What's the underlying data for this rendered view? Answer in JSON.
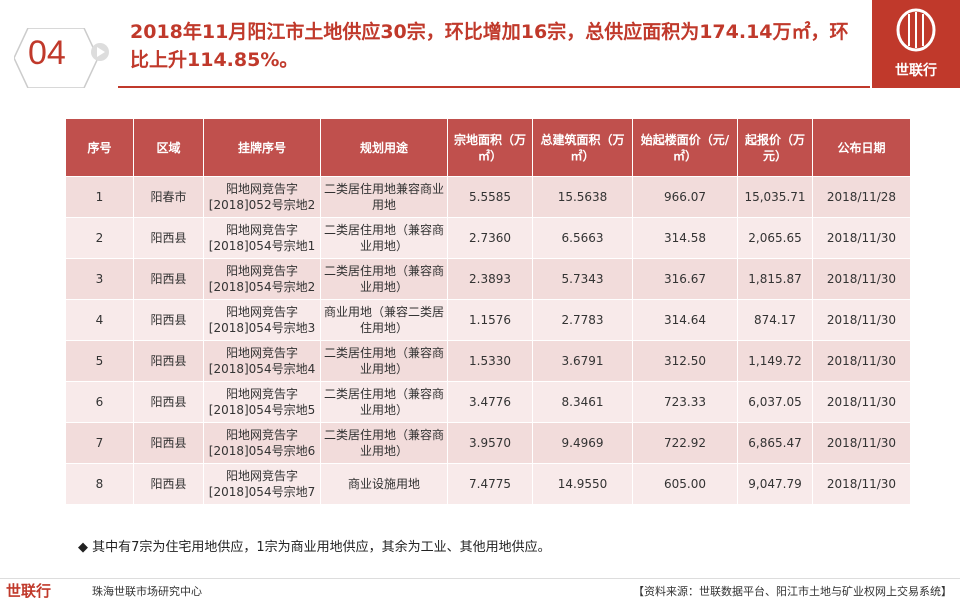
{
  "header": {
    "number": "04",
    "title": "2018年11月阳江市土地供应30宗，环比增加16宗，总供应面积为174.14万㎡，环比上升114.85%。",
    "logo": "世联行"
  },
  "table": {
    "header": [
      "序号",
      "区域",
      "挂牌序号",
      "规划用途",
      "宗地面积（万㎡）",
      "总建筑面积（万㎡）",
      "始起楼面价（元/㎡）",
      "起报价（万元）",
      "公布日期"
    ],
    "rows": [
      [
        "1",
        "阳春市",
        "阳地网竞告字[2018]052号宗地2",
        "二类居住用地兼容商业用地",
        "5.5585",
        "15.5638",
        "966.07",
        "15,035.71",
        "2018/11/28"
      ],
      [
        "2",
        "阳西县",
        "阳地网竞告字[2018]054号宗地1",
        "二类居住用地（兼容商业用地）",
        "2.7360",
        "6.5663",
        "314.58",
        "2,065.65",
        "2018/11/30"
      ],
      [
        "3",
        "阳西县",
        "阳地网竞告字[2018]054号宗地2",
        "二类居住用地（兼容商业用地）",
        "2.3893",
        "5.7343",
        "316.67",
        "1,815.87",
        "2018/11/30"
      ],
      [
        "4",
        "阳西县",
        "阳地网竞告字[2018]054号宗地3",
        "商业用地（兼容二类居住用地）",
        "1.1576",
        "2.7783",
        "314.64",
        "874.17",
        "2018/11/30"
      ],
      [
        "5",
        "阳西县",
        "阳地网竞告字[2018]054号宗地4",
        "二类居住用地（兼容商业用地）",
        "1.5330",
        "3.6791",
        "312.50",
        "1,149.72",
        "2018/11/30"
      ],
      [
        "6",
        "阳西县",
        "阳地网竞告字[2018]054号宗地5",
        "二类居住用地（兼容商业用地）",
        "3.4776",
        "8.3461",
        "723.33",
        "6,037.05",
        "2018/11/30"
      ],
      [
        "7",
        "阳西县",
        "阳地网竞告字[2018]054号宗地6",
        "二类居住用地（兼容商业用地）",
        "3.9570",
        "9.4969",
        "722.92",
        "6,865.47",
        "2018/11/30"
      ],
      [
        "8",
        "阳西县",
        "阳地网竞告字[2018]054号宗地7",
        "商业设施用地",
        "7.4775",
        "14.9550",
        "605.00",
        "9,047.79",
        "2018/11/30"
      ]
    ]
  },
  "note": "◆ 其中有7宗为住宅用地供应，1宗为商业用地供应，其余为工业、其他用地供应。",
  "footer": {
    "logo": "世联行",
    "org": "珠海世联市场研究中心",
    "source": "【资料来源：世联数据平台、阳江市土地与矿业权网上交易系统】"
  }
}
